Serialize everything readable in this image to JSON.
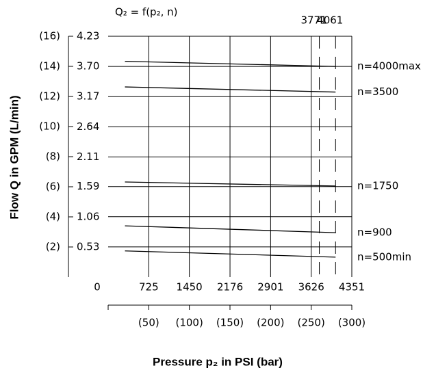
{
  "chart_data": {
    "type": "line",
    "formula": "Q₂ = f(p₂, n)",
    "x_label": "Pressure p₂ in PSI (bar)",
    "y_label": "Flow Q in GPM (L/min)",
    "xlim": [
      0,
      4351
    ],
    "xticks": [
      0,
      725,
      1450,
      2176,
      2901,
      3626,
      4351
    ],
    "x2lim": [
      0,
      300
    ],
    "x2ticks": [
      {
        "value": 0,
        "label": ""
      },
      {
        "value": 50,
        "label": "(50)"
      },
      {
        "value": 100,
        "label": "(100)"
      },
      {
        "value": 150,
        "label": "(150)"
      },
      {
        "value": 200,
        "label": "(200)"
      },
      {
        "value": 250,
        "label": "(250)"
      },
      {
        "value": 300,
        "label": "(300)"
      }
    ],
    "ylim": [
      0,
      4.23
    ],
    "yticks": [
      0.53,
      1.06,
      1.59,
      2.11,
      2.64,
      3.17,
      {
        "value": 3.7,
        "label": "3.70"
      },
      4.23
    ],
    "y2lim": [
      0,
      16
    ],
    "y2ticks": [
      {
        "value": 2,
        "label": "(2)"
      },
      {
        "value": 4,
        "label": "(4)"
      },
      {
        "value": 6,
        "label": "(6)"
      },
      {
        "value": 8,
        "label": "(8)"
      },
      {
        "value": 10,
        "label": "(10)"
      },
      {
        "value": 12,
        "label": "(12)"
      },
      {
        "value": 14,
        "label": "(14)"
      },
      {
        "value": 16,
        "label": "(16)"
      }
    ],
    "limits": [
      3771,
      4061
    ],
    "x": [
      300,
      4061
    ],
    "series": [
      {
        "name": "n=4000max",
        "color": "#000000",
        "values": [
          3.79,
          3.7
        ]
      },
      {
        "name": "n=3500",
        "color": "#000000",
        "values": [
          3.34,
          3.25
        ]
      },
      {
        "name": "n=1750",
        "color": "#000000",
        "values": [
          1.67,
          1.6
        ]
      },
      {
        "name": "n=900",
        "color": "#000000",
        "values": [
          0.9,
          0.78
        ]
      },
      {
        "name": "n=500min",
        "color": "#000000",
        "values": [
          0.46,
          0.35
        ]
      }
    ],
    "grid": true
  }
}
